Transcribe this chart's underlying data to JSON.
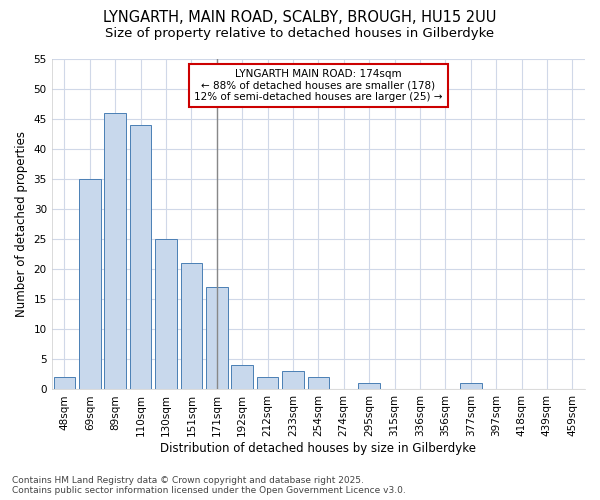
{
  "title": "LYNGARTH, MAIN ROAD, SCALBY, BROUGH, HU15 2UU",
  "subtitle": "Size of property relative to detached houses in Gilberdyke",
  "xlabel": "Distribution of detached houses by size in Gilberdyke",
  "ylabel": "Number of detached properties",
  "categories": [
    "48sqm",
    "69sqm",
    "89sqm",
    "110sqm",
    "130sqm",
    "151sqm",
    "171sqm",
    "192sqm",
    "212sqm",
    "233sqm",
    "254sqm",
    "274sqm",
    "295sqm",
    "315sqm",
    "336sqm",
    "356sqm",
    "377sqm",
    "397sqm",
    "418sqm",
    "439sqm",
    "459sqm"
  ],
  "values": [
    2,
    35,
    46,
    44,
    25,
    21,
    17,
    4,
    2,
    3,
    2,
    0,
    1,
    0,
    0,
    0,
    1,
    0,
    0,
    0,
    0
  ],
  "bar_color": "#c8d8ec",
  "bar_edge_color": "#4a7fb5",
  "background_color": "#ffffff",
  "grid_color": "#d0d8e8",
  "vline_x": 6,
  "vline_color": "#888888",
  "annotation_text": "LYNGARTH MAIN ROAD: 174sqm\n← 88% of detached houses are smaller (178)\n12% of semi-detached houses are larger (25) →",
  "annotation_box_color": "#ffffff",
  "annotation_box_edge": "#cc0000",
  "ylim": [
    0,
    55
  ],
  "yticks": [
    0,
    5,
    10,
    15,
    20,
    25,
    30,
    35,
    40,
    45,
    50,
    55
  ],
  "footer": "Contains HM Land Registry data © Crown copyright and database right 2025.\nContains public sector information licensed under the Open Government Licence v3.0.",
  "title_fontsize": 10.5,
  "subtitle_fontsize": 9.5,
  "axis_label_fontsize": 8.5,
  "tick_fontsize": 7.5,
  "annotation_fontsize": 7.5,
  "footer_fontsize": 6.5
}
